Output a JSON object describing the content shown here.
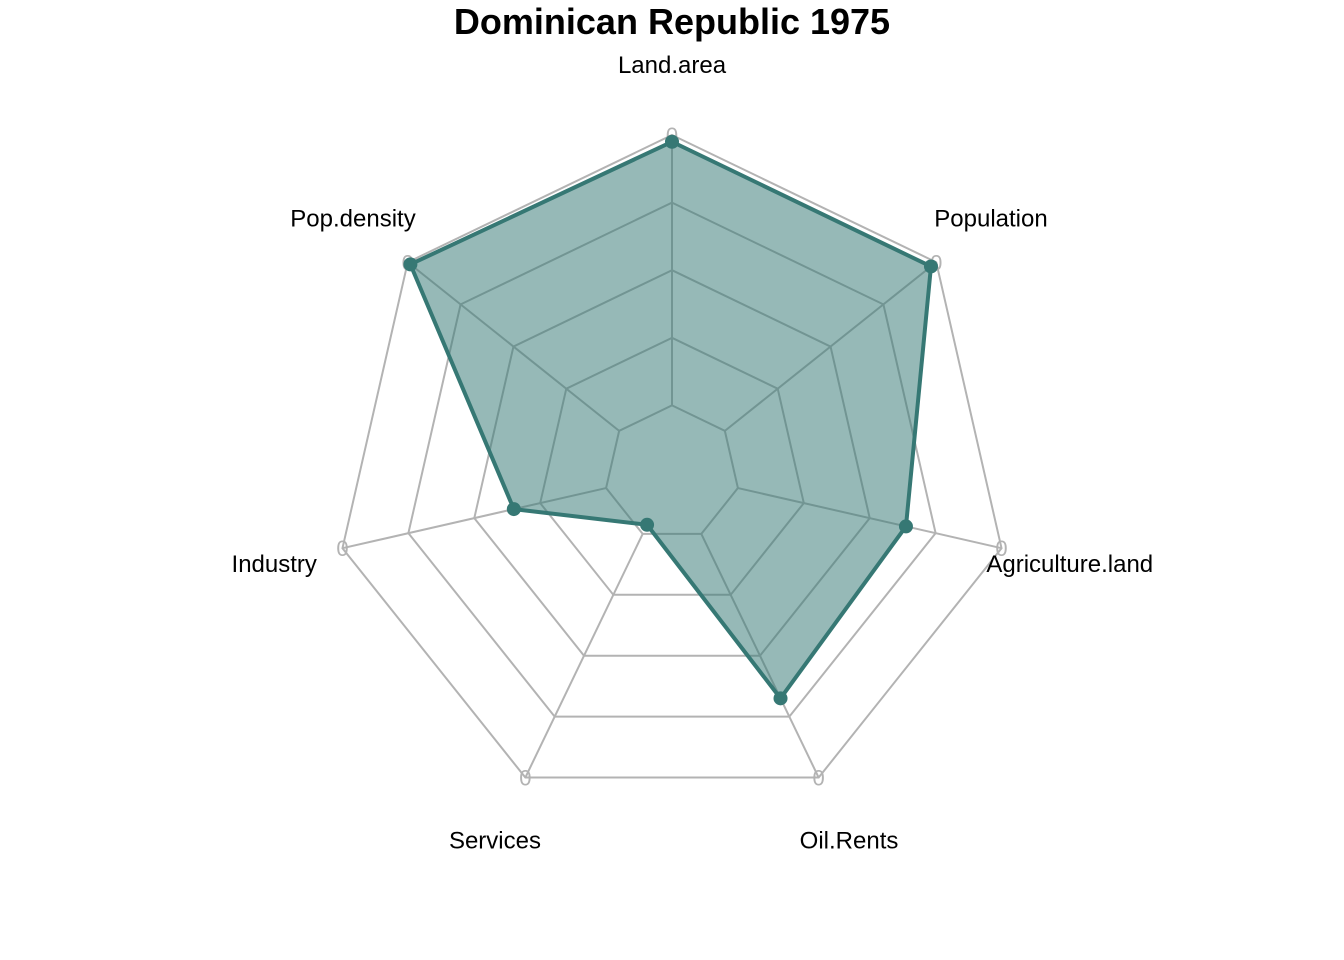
{
  "chart_data": {
    "type": "radar",
    "title": "Dominican Republic 1975",
    "axes": [
      "Land.area",
      "Population",
      "Agriculture.land",
      "Oil.Rents",
      "Services",
      "Industry",
      "Pop.density"
    ],
    "axis_min_label": "0",
    "range": [
      0,
      1
    ],
    "grid_levels": 5,
    "grid": true,
    "values": [
      0.98,
      0.98,
      0.71,
      0.74,
      0.17,
      0.48,
      0.99
    ],
    "colors": {
      "series_line": "#367874",
      "series_fill": "#367874",
      "grid": "#b3b3b3"
    }
  }
}
